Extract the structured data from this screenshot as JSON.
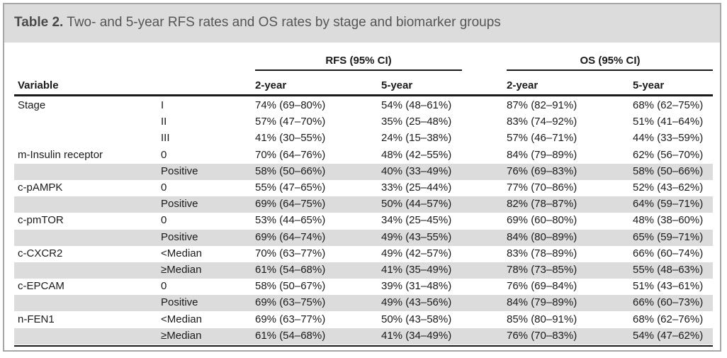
{
  "caption": {
    "label": "Table 2.",
    "text": "Two- and 5-year RFS rates and OS rates by stage and biomarker groups"
  },
  "header": {
    "group_rfs": "RFS (95% CI)",
    "group_os": "OS (95% CI)",
    "variable": "Variable",
    "rfs_2y": "2-year",
    "rfs_5y": "5-year",
    "os_2y": "2-year",
    "os_5y": "5-year"
  },
  "rows": [
    {
      "variable": "Stage",
      "group": "I",
      "rfs2": "74% (69–80%)",
      "rfs5": "54% (48–61%)",
      "os2": "87% (82–91%)",
      "os5": "68% (62–75%)"
    },
    {
      "variable": "",
      "group": "II",
      "rfs2": "57% (47–70%)",
      "rfs5": "35% (25–48%)",
      "os2": "83% (74–92%)",
      "os5": "51% (41–64%)"
    },
    {
      "variable": "",
      "group": "III",
      "rfs2": "41% (30–55%)",
      "rfs5": "24% (15–38%)",
      "os2": "57% (46–71%)",
      "os5": "44% (33–59%)"
    },
    {
      "variable": "m-Insulin receptor",
      "group": "0",
      "rfs2": "70% (64–76%)",
      "rfs5": "48% (42–55%)",
      "os2": "84% (79–89%)",
      "os5": "62% (56–70%)"
    },
    {
      "variable": "",
      "group": "Positive",
      "rfs2": "58% (50–66%)",
      "rfs5": "40% (33–49%)",
      "os2": "76% (69–83%)",
      "os5": "58% (50–66%)"
    },
    {
      "variable": "c-pAMPK",
      "group": "0",
      "rfs2": "55% (47–65%)",
      "rfs5": "33% (25–44%)",
      "os2": "77% (70–86%)",
      "os5": "52% (43–62%)"
    },
    {
      "variable": "",
      "group": "Positive",
      "rfs2": "69% (64–75%)",
      "rfs5": "50% (44–57%)",
      "os2": "82% (78–87%)",
      "os5": "64% (59–71%)"
    },
    {
      "variable": "c-pmTOR",
      "group": "0",
      "rfs2": "53% (44–65%)",
      "rfs5": "34% (25–45%)",
      "os2": "69% (60–80%)",
      "os5": "48% (38–60%)"
    },
    {
      "variable": "",
      "group": "Positive",
      "rfs2": "69% (64–74%)",
      "rfs5": "49% (43–55%)",
      "os2": "84% (80–89%)",
      "os5": "65% (59–71%)"
    },
    {
      "variable": "c-CXCR2",
      "group": "<Median",
      "rfs2": "70% (63–77%)",
      "rfs5": "49% (42–57%)",
      "os2": "83% (78–89%)",
      "os5": "66% (60–74%)"
    },
    {
      "variable": "",
      "group": "≥Median",
      "rfs2": "61% (54–68%)",
      "rfs5": "41% (35–49%)",
      "os2": "78% (73–85%)",
      "os5": "55% (48–63%)"
    },
    {
      "variable": "c-EPCAM",
      "group": "0",
      "rfs2": "58% (50–67%)",
      "rfs5": "39% (31–48%)",
      "os2": "76% (69–84%)",
      "os5": "51% (43–61%)"
    },
    {
      "variable": "",
      "group": "Positive",
      "rfs2": "69% (63–75%)",
      "rfs5": "49% (43–56%)",
      "os2": "84% (79–89%)",
      "os5": "66% (60–73%)"
    },
    {
      "variable": "n-FEN1",
      "group": "<Median",
      "rfs2": "69% (63–77%)",
      "rfs5": "50% (43–58%)",
      "os2": "85% (80–91%)",
      "os5": "68% (62–76%)"
    },
    {
      "variable": "",
      "group": "≥Median",
      "rfs2": "61% (54–68%)",
      "rfs5": "41% (34–49%)",
      "os2": "76% (70–83%)",
      "os5": "54% (47–62%)"
    }
  ],
  "shaded_rows": [
    4,
    6,
    8,
    10,
    12,
    14
  ]
}
